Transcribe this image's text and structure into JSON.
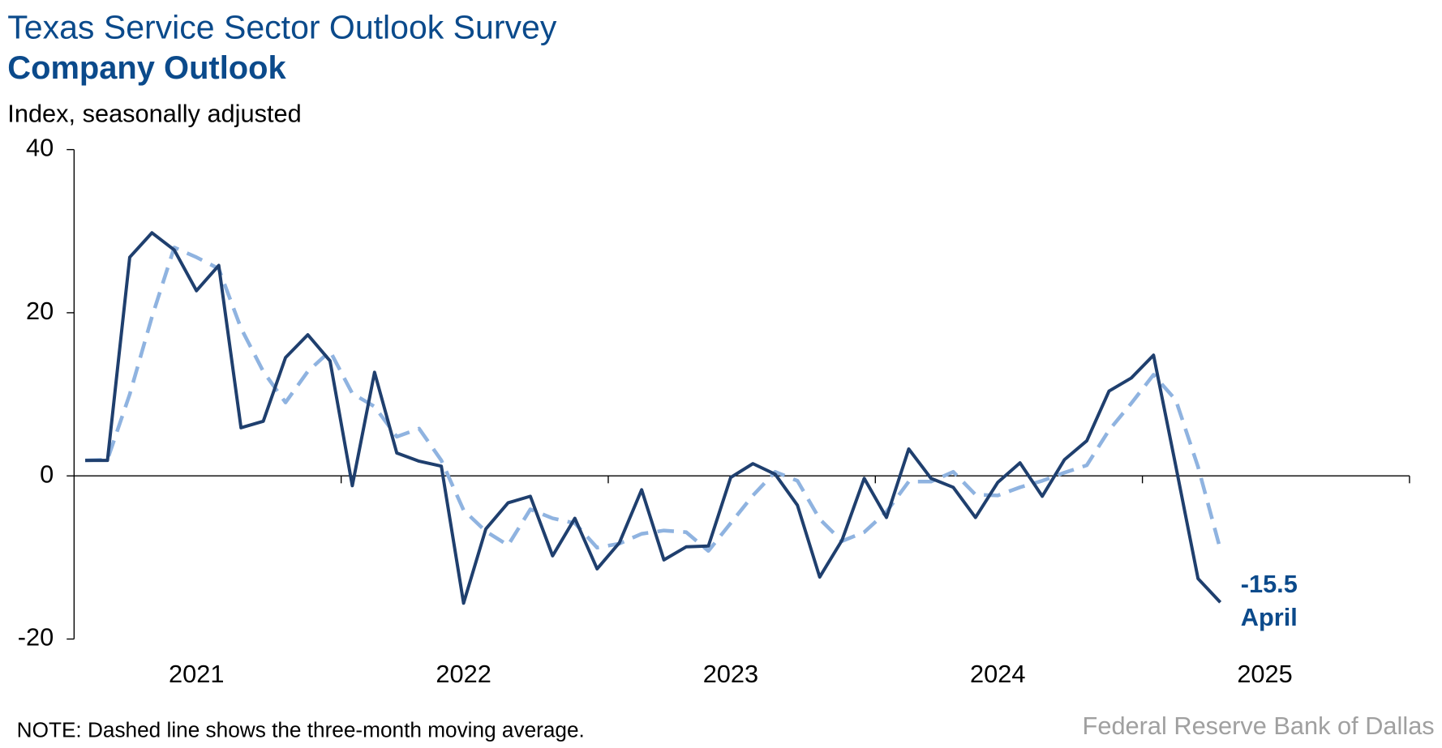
{
  "chart_data": {
    "type": "line",
    "title": "Texas Service Sector Outlook Survey",
    "subtitle": "Company Outlook",
    "y_label": "Index, seasonally adjusted",
    "note": "NOTE: Dashed line shows the three-month moving average.",
    "source": "Federal Reserve Bank of Dallas",
    "annotation": "April",
    "categories": [
      null,
      null,
      null,
      null,
      null,
      "2021",
      null,
      null,
      null,
      null,
      null,
      null,
      null,
      null,
      null,
      null,
      null,
      "2022",
      null,
      null,
      null,
      null,
      null,
      null,
      null,
      null,
      null,
      null,
      null,
      "2023",
      null,
      null,
      null,
      null,
      null,
      null,
      null,
      null,
      null,
      null,
      null,
      "2024",
      null,
      null,
      null,
      null,
      null,
      null,
      null,
      null,
      null,
      null,
      null,
      "2025",
      null,
      null,
      null,
      null,
      null,
      null
    ],
    "series": [
      {
        "name": "Company outlook",
        "color": "#1f3f6e",
        "style": "solid",
        "values": [
          1.9,
          1.9,
          26.8,
          29.8,
          27.7,
          22.7,
          25.8,
          5.9,
          6.7,
          14.5,
          17.3,
          14.1,
          -1.2,
          12.7,
          2.8,
          1.8,
          1.2,
          -15.6,
          -6.5,
          -3.3,
          -2.5,
          -9.8,
          -5.2,
          -11.4,
          -8.2,
          -1.7,
          -10.3,
          -8.7,
          -8.6,
          -0.2,
          1.5,
          0.2,
          -3.6,
          -12.4,
          -7.9,
          -0.3,
          -5.1,
          3.3,
          -0.3,
          -1.4,
          -5.1,
          -0.8,
          1.6,
          -2.5,
          2.0,
          4.3,
          10.4,
          12.0,
          14.8,
          1.2,
          -12.6,
          -15.5,
          null,
          null,
          null,
          null,
          null,
          null,
          null,
          null
        ]
      },
      {
        "name": "Three-month moving average",
        "color": "#8fb3e0",
        "style": "dashed",
        "values": [
          1.9,
          2.0,
          10.0,
          19.5,
          28.0,
          26.8,
          25.4,
          18.1,
          12.8,
          9.0,
          12.8,
          15.3,
          10.1,
          8.5,
          4.8,
          5.8,
          1.9,
          -4.2,
          -6.8,
          -8.5,
          -4.1,
          -5.2,
          -5.8,
          -8.8,
          -8.3,
          -7.1,
          -6.7,
          -6.9,
          -9.2,
          -5.8,
          -2.4,
          0.5,
          -0.6,
          -5.3,
          -8.0,
          -6.9,
          -4.4,
          -0.7,
          -0.7,
          0.5,
          -2.3,
          -2.4,
          -1.4,
          -0.6,
          0.4,
          1.3,
          5.6,
          8.9,
          12.4,
          9.3,
          1.1,
          -9.0,
          null,
          null,
          null,
          null,
          null,
          null,
          null,
          null
        ]
      }
    ],
    "ylim": [
      -20,
      40
    ],
    "yticks": [
      -20,
      0,
      20,
      40
    ]
  }
}
